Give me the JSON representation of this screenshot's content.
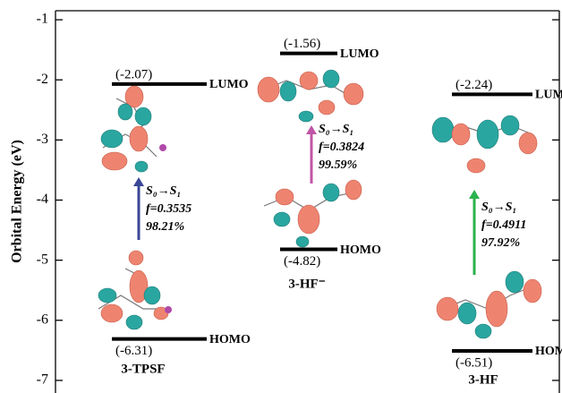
{
  "chart_data": {
    "type": "energy-level",
    "y_label": "Orbital Energy (eV)",
    "ylim": [
      -7.15,
      -0.85
    ],
    "yticks": [
      -1,
      -2,
      -3,
      -4,
      -5,
      -6,
      -7
    ],
    "levels": [
      "LUMO",
      "HOMO"
    ],
    "series": [
      {
        "name": "3-TPSF",
        "values": [
          -2.07,
          -6.31
        ],
        "value_labels": [
          "(-2.07)",
          "(-6.31)"
        ],
        "transition": {
          "label": "S₀→S₁",
          "f": "f=0.3535",
          "percent": "98.21%",
          "color": "#3a4796"
        }
      },
      {
        "name": "3-HF⁻",
        "values": [
          -1.56,
          -4.82
        ],
        "value_labels": [
          "(-1.56)",
          "(-4.82)"
        ],
        "transition": {
          "label": "S₀→S₁",
          "f": "f=0.3824",
          "percent": "99.59%",
          "color": "#c055a6"
        }
      },
      {
        "name": "3-HF",
        "values": [
          -2.24,
          -6.51
        ],
        "value_labels": [
          "(-2.24)",
          "(-6.51)"
        ],
        "transition": {
          "label": "S₀→S₁",
          "f": "f=0.4911",
          "percent": "97.92%",
          "color": "#2bb24c"
        }
      }
    ]
  }
}
